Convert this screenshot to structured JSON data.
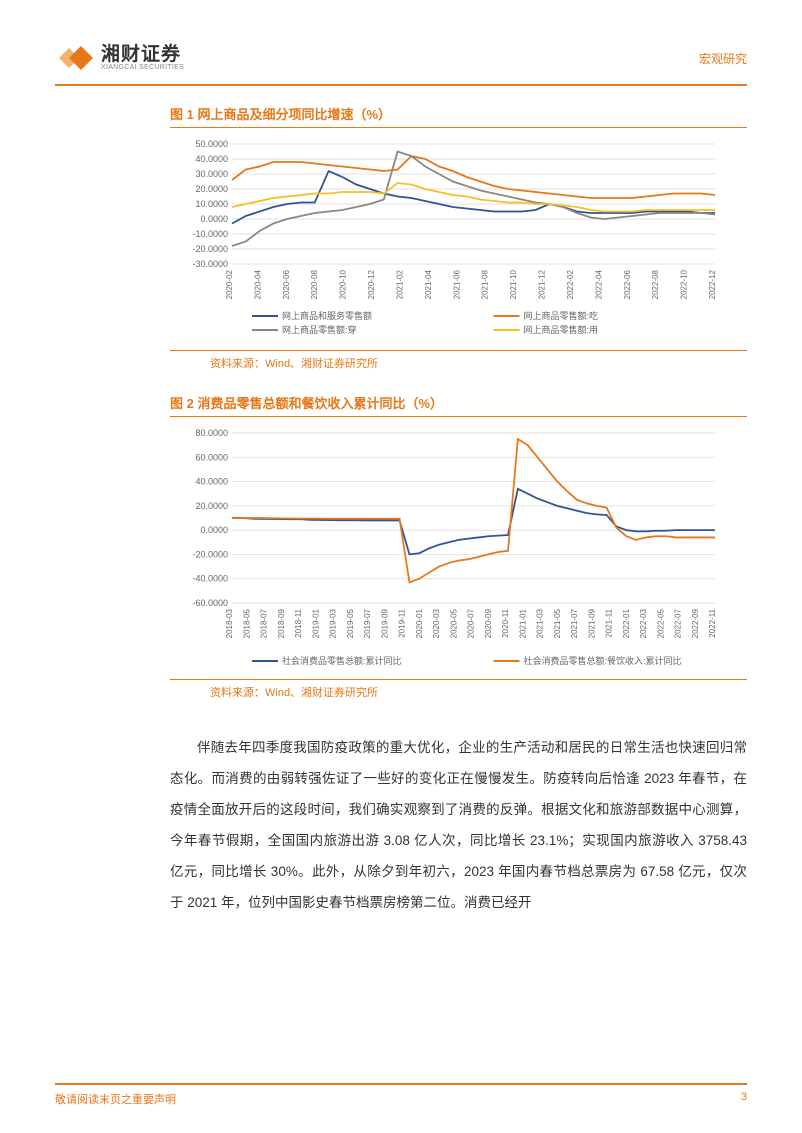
{
  "header": {
    "company_cn": "湘财证券",
    "company_en": "XIANGCAI SECURITIES",
    "section": "宏观研究",
    "logo_color1": "#e67817",
    "logo_color2": "#f5b26b"
  },
  "chart1": {
    "title": "图 1 网上商品及细分项同比增速（%）",
    "type": "line",
    "source": "资料来源：Wind、湘财证券研究所",
    "background_color": "#ffffff",
    "grid_color": "#d9d9d9",
    "y_ticks": [
      -30,
      -20,
      -10,
      0,
      10,
      20,
      30,
      40,
      50
    ],
    "y_tick_labels": [
      "-30.0000",
      "-20.0000",
      "-10.0000",
      "0.0000",
      "10.0000",
      "20.0000",
      "30.0000",
      "40.0000",
      "50.0000"
    ],
    "ylim": [
      -30,
      50
    ],
    "x_labels": [
      "2020-02",
      "2020-04",
      "2020-06",
      "2020-08",
      "2020-10",
      "2020-12",
      "2021-02",
      "2021-04",
      "2021-06",
      "2021-08",
      "2021-10",
      "2021-12",
      "2022-02",
      "2022-04",
      "2022-06",
      "2022-08",
      "2022-10",
      "2022-12"
    ],
    "series": [
      {
        "name": "网上商品和服务零售额",
        "color": "#2f5597",
        "width": 1.8,
        "values": [
          -3,
          2,
          5,
          8,
          10,
          11,
          11,
          32,
          28,
          23,
          20,
          17,
          15,
          14,
          12,
          10,
          8,
          7,
          6,
          5,
          5,
          5,
          6,
          10,
          8,
          5,
          4,
          4,
          4,
          4,
          5,
          5,
          5,
          5,
          4,
          4
        ]
      },
      {
        "name": "网上商品零售额:吃",
        "color": "#e67817",
        "width": 1.8,
        "values": [
          26,
          33,
          35,
          38,
          38,
          38,
          37,
          36,
          35,
          34,
          33,
          32,
          33,
          42,
          40,
          35,
          32,
          28,
          25,
          22,
          20,
          19,
          18,
          17,
          16,
          15,
          14,
          14,
          14,
          14,
          15,
          16,
          17,
          17,
          17,
          16
        ]
      },
      {
        "name": "网上商品零售额:穿",
        "color": "#888888",
        "width": 1.8,
        "values": [
          -18,
          -15,
          -8,
          -3,
          0,
          2,
          4,
          5,
          6,
          8,
          10,
          13,
          45,
          42,
          35,
          30,
          25,
          22,
          19,
          17,
          15,
          13,
          11,
          10,
          8,
          4,
          1,
          0,
          1,
          2,
          3,
          4,
          4,
          4,
          4,
          3
        ]
      },
      {
        "name": "网上商品零售额:用",
        "color": "#f2c027",
        "width": 1.8,
        "values": [
          8,
          10,
          12,
          14,
          15,
          16,
          17,
          17,
          18,
          18,
          18,
          17,
          24,
          23,
          20,
          18,
          16,
          15,
          13,
          12,
          11,
          11,
          10,
          10,
          9,
          8,
          6,
          5,
          5,
          5,
          6,
          6,
          6,
          6,
          6,
          6
        ]
      }
    ]
  },
  "chart2": {
    "title": "图 2 消费品零售总额和餐饮收入累计同比（%）",
    "type": "line",
    "source": "资料来源：Wind、湘财证券研究所",
    "background_color": "#ffffff",
    "grid_color": "#d9d9d9",
    "y_ticks": [
      -60,
      -40,
      -20,
      0,
      20,
      40,
      60,
      80
    ],
    "y_tick_labels": [
      "-60.0000",
      "-40.0000",
      "-20.0000",
      "0.0000",
      "20.0000",
      "40.0000",
      "60.0000",
      "80.0000"
    ],
    "ylim": [
      -60,
      80
    ],
    "x_labels": [
      "2018-03",
      "2018-05",
      "2018-07",
      "2018-09",
      "2018-11",
      "2019-01",
      "2019-03",
      "2019-05",
      "2019-07",
      "2019-09",
      "2019-11",
      "2020-01",
      "2020-03",
      "2020-05",
      "2020-07",
      "2020-09",
      "2020-11",
      "2021-01",
      "2021-03",
      "2021-05",
      "2021-07",
      "2021-09",
      "2021-11",
      "2022-01",
      "2022-03",
      "2022-05",
      "2022-07",
      "2022-09",
      "2022-11"
    ],
    "series": [
      {
        "name": "社会消费品零售总额:累计同比",
        "color": "#2f5597",
        "width": 1.8,
        "values": [
          10,
          10,
          9.5,
          9.3,
          9.2,
          9.1,
          9,
          9,
          8.5,
          8.4,
          8.3,
          8.2,
          8.2,
          8.1,
          8.0,
          8.0,
          8.0,
          8.0,
          -20,
          -19,
          -15,
          -12,
          -10,
          -8,
          -7,
          -6,
          -5,
          -4.5,
          -4,
          34,
          30,
          26,
          23,
          20,
          18,
          16,
          14,
          13,
          12.5,
          3,
          0,
          -1,
          -1,
          -0.5,
          -0.5,
          0,
          0,
          0,
          0,
          0
        ]
      },
      {
        "name": "社会消费品零售总额:餐饮收入:累计同比",
        "color": "#e67817",
        "width": 1.8,
        "values": [
          10,
          10,
          10,
          10,
          9.8,
          9.7,
          9.6,
          9.5,
          9.5,
          9.5,
          9.4,
          9.4,
          9.4,
          9.4,
          9.4,
          9.4,
          9.4,
          9.4,
          -43,
          -40,
          -35,
          -30,
          -27,
          -25,
          -24,
          -22,
          -20,
          -18,
          -17,
          75,
          70,
          60,
          50,
          40,
          32,
          25,
          22,
          20,
          18.6,
          2,
          -5,
          -8,
          -6,
          -5,
          -5,
          -6,
          -6,
          -6,
          -6,
          -6
        ]
      }
    ]
  },
  "body": "伴随去年四季度我国防疫政策的重大优化，企业的生产活动和居民的日常生活也快速回归常态化。而消费的由弱转强佐证了一些好的变化正在慢慢发生。防疫转向后恰逢 2023 年春节，在疫情全面放开后的这段时间，我们确实观察到了消费的反弹。根据文化和旅游部数据中心测算，今年春节假期，全国国内旅游出游 3.08 亿人次，同比增长 23.1%；实现国内旅游收入 3758.43 亿元，同比增长 30%。此外，从除夕到年初六，2023 年国内春节档总票房为 67.58 亿元，仅次于 2021 年，位列中国影史春节档票房榜第二位。消费已经开",
  "footer": {
    "left": "敬请阅读末页之重要声明",
    "page": "3"
  }
}
